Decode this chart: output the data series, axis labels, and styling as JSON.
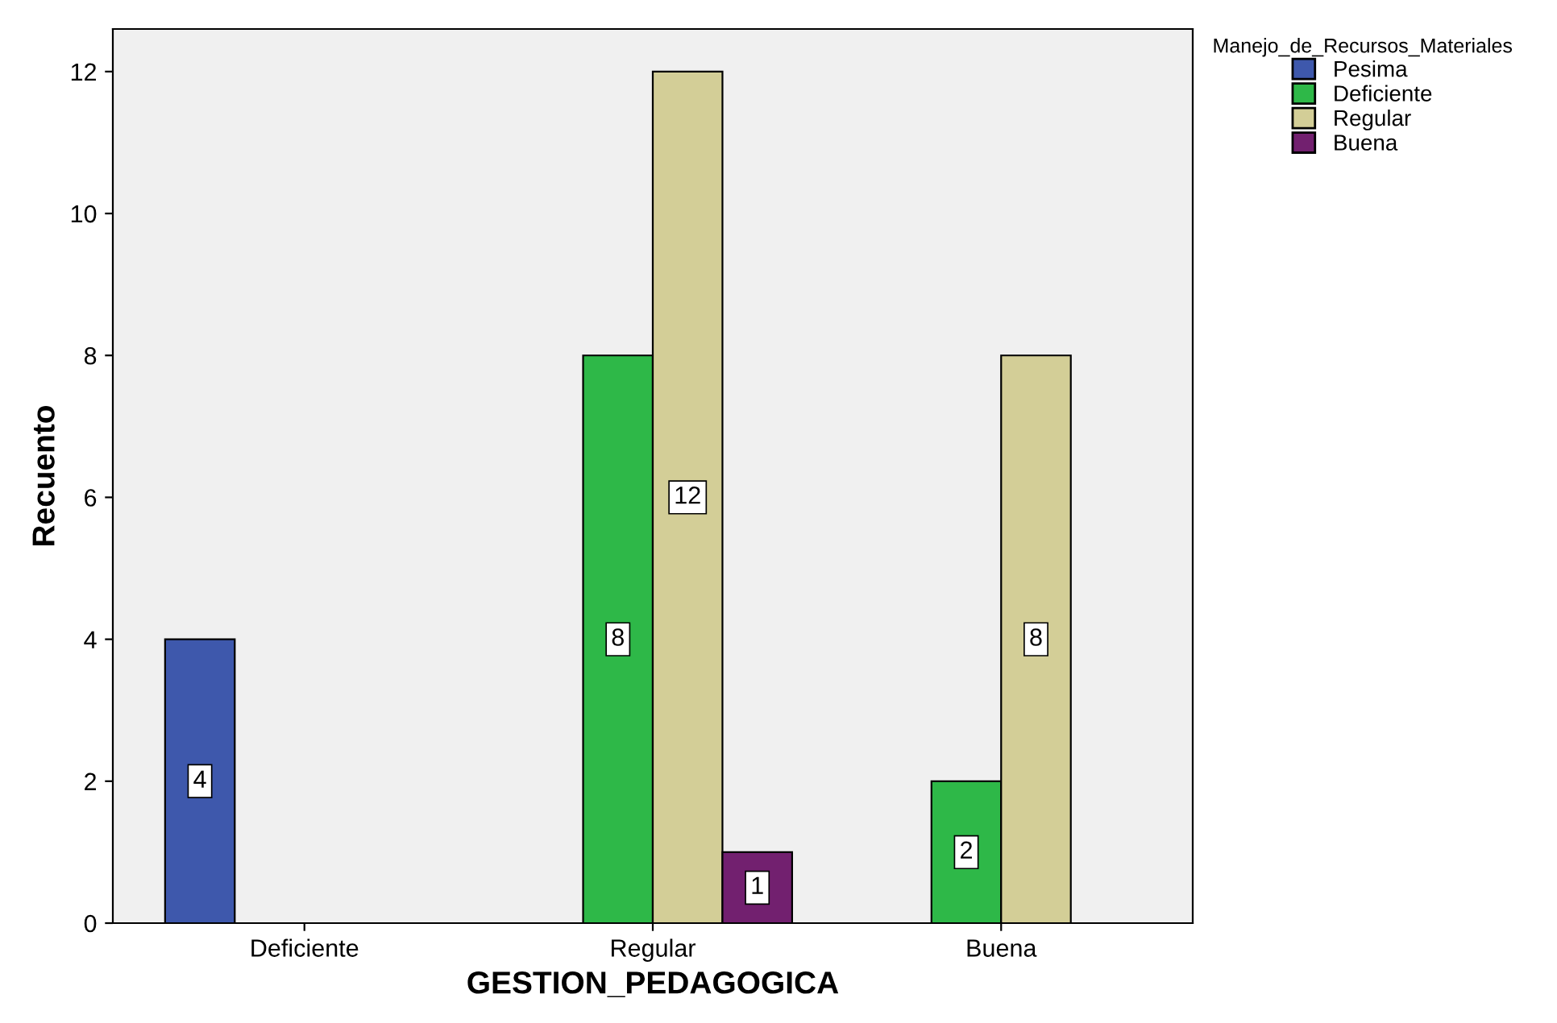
{
  "chart_data": {
    "type": "bar",
    "xlabel": "GESTION_PEDAGOGICA",
    "ylabel": "Recuento",
    "legend_title": "Manejo_de_Recursos_Materiales",
    "categories": [
      "Deficiente",
      "Regular",
      "Buena"
    ],
    "series": [
      {
        "name": "Pesima",
        "color": "#3e58ac",
        "values": [
          4,
          null,
          null
        ]
      },
      {
        "name": "Deficiente",
        "color": "#2eb848",
        "values": [
          null,
          8,
          2
        ]
      },
      {
        "name": "Regular",
        "color": "#d3ce97",
        "values": [
          null,
          12,
          8
        ]
      },
      {
        "name": "Buena",
        "color": "#72206f",
        "values": [
          null,
          1,
          null
        ]
      }
    ],
    "ylim": [
      0,
      12.6
    ],
    "yticks": [
      0,
      2,
      4,
      6,
      8,
      10,
      12
    ],
    "grid": false,
    "legend": "top right",
    "data_labels": true
  }
}
